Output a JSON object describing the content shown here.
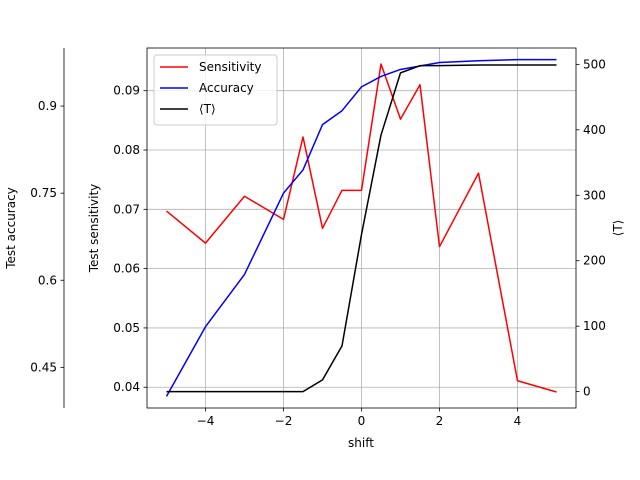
{
  "chart_data": {
    "type": "line",
    "xlabel": "shift",
    "ylabel_left_outer": "Test accuracy",
    "ylabel_left_inner": "Test sensitivity",
    "ylabel_right": "⟨T⟩",
    "grid": true,
    "legend_placement": "top-left",
    "xlim": [
      -5.5,
      5.5
    ],
    "x_ticks": [
      -4,
      -2,
      0,
      2,
      4
    ],
    "x_tick_labels": [
      "−4",
      "−2",
      "0",
      "2",
      "4"
    ],
    "sensitivity_axis": {
      "ylim": [
        0.0365,
        0.0972
      ],
      "ticks": [
        0.04,
        0.05,
        0.06,
        0.07,
        0.08,
        0.09
      ],
      "tick_labels": [
        "0.04",
        "0.05",
        "0.06",
        "0.07",
        "0.08",
        "0.09"
      ]
    },
    "accuracy_axis": {
      "ylim": [
        0.38,
        1.0
      ],
      "ticks": [
        0.45,
        0.6,
        0.75,
        0.9
      ],
      "tick_labels": [
        "0.45",
        "0.6",
        "0.75",
        "0.9"
      ]
    },
    "t_axis": {
      "ylim": [
        -25,
        525
      ],
      "ticks": [
        0,
        100,
        200,
        300,
        400,
        500
      ],
      "tick_labels": [
        "0",
        "100",
        "200",
        "300",
        "400",
        "500"
      ]
    },
    "series": [
      {
        "name": "Sensitivity",
        "color": "#ff0000",
        "axis": "sensitivity",
        "x": [
          -5,
          -4,
          -3,
          -2,
          -1.5,
          -1,
          -0.5,
          0,
          0.5,
          1,
          1.5,
          2,
          3,
          4,
          5
        ],
        "y": [
          0.0697,
          0.0643,
          0.0722,
          0.0683,
          0.0822,
          0.0668,
          0.0732,
          0.0732,
          0.0945,
          0.0852,
          0.091,
          0.0637,
          0.0761,
          0.0411,
          0.0392
        ]
      },
      {
        "name": "Accuracy",
        "color": "#0000ff",
        "axis": "accuracy",
        "x": [
          -5,
          -4,
          -3,
          -2,
          -1.5,
          -1,
          -0.5,
          0,
          0.5,
          1,
          1.5,
          2,
          3,
          4,
          5
        ],
        "y": [
          0.4,
          0.52,
          0.61,
          0.75,
          0.79,
          0.868,
          0.892,
          0.933,
          0.951,
          0.963,
          0.969,
          0.975,
          0.978,
          0.98,
          0.98
        ]
      },
      {
        "name": "⟨T⟩",
        "color": "#000000",
        "axis": "t",
        "x": [
          -5,
          -4,
          -3,
          -2,
          -1.5,
          -1,
          -0.5,
          0,
          0.5,
          1,
          1.5,
          2,
          3,
          4,
          5
        ],
        "y": [
          0,
          0,
          0,
          0,
          0,
          18,
          70,
          240,
          392,
          487,
          498,
          498,
          499,
          499,
          499
        ]
      }
    ]
  }
}
